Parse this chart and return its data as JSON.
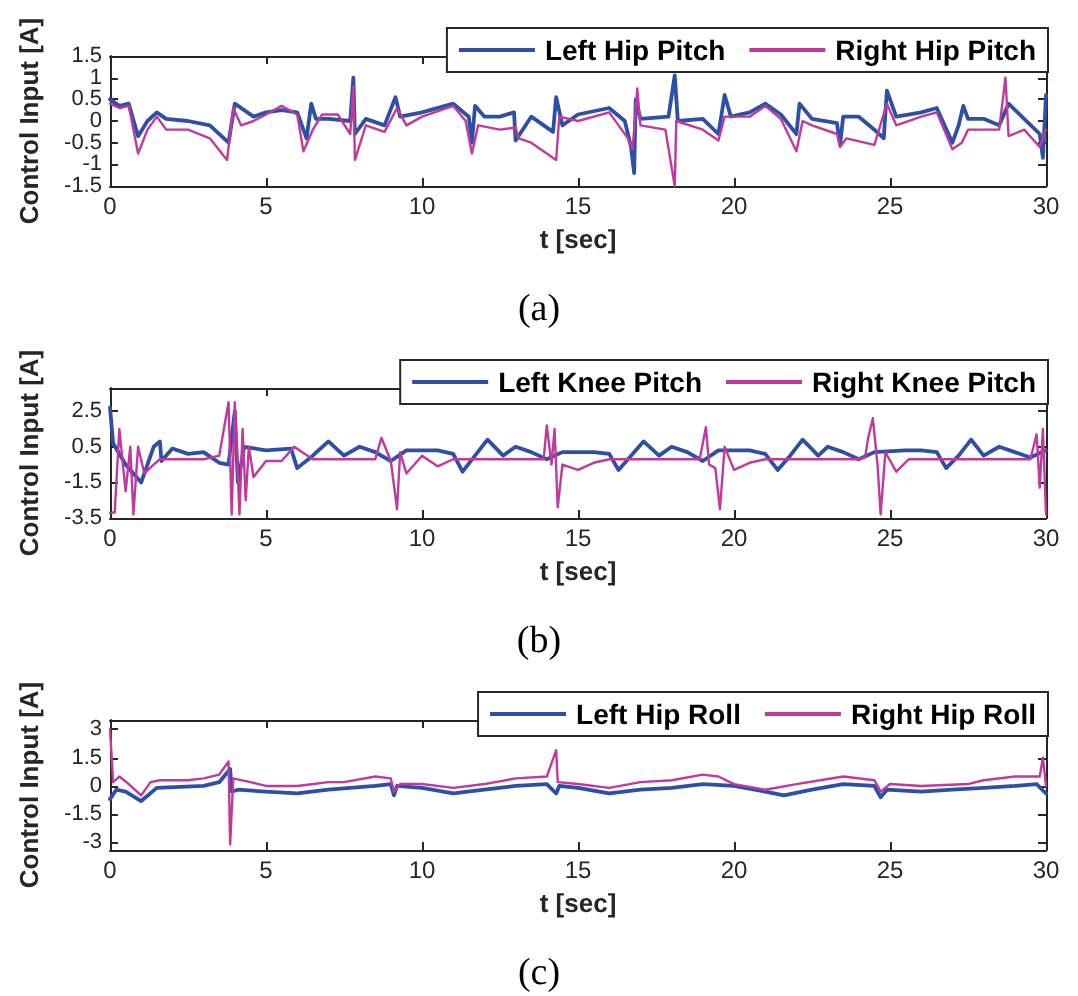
{
  "chart_data": [
    {
      "type": "line",
      "xlabel": "t [sec]",
      "ylabel": "Control Input [A]",
      "annotations": [
        "(a)"
      ],
      "xlim": [
        0,
        30
      ],
      "xticks": [
        0,
        5,
        10,
        15,
        20,
        25,
        30
      ],
      "ylim": [
        -1.5,
        1.5
      ],
      "yticks": [
        -1.5,
        -1,
        -0.5,
        0,
        0.5,
        1,
        1.5
      ],
      "legend": "top right",
      "grid": false,
      "series": [
        {
          "name": "Left Hip Pitch",
          "color": "#2e4fa8",
          "x": [
            0,
            0.3,
            0.6,
            0.9,
            1.2,
            1.5,
            1.8,
            2.5,
            3.2,
            3.8,
            4.0,
            4.3,
            4.6,
            5.0,
            5.5,
            6.0,
            6.3,
            6.45,
            6.6,
            7.0,
            7.7,
            7.8,
            7.85,
            8.2,
            8.8,
            9.15,
            9.3,
            10,
            11,
            11.5,
            11.6,
            11.7,
            12,
            12.5,
            12.95,
            13.0,
            13.5,
            14.2,
            14.3,
            14.5,
            15,
            16,
            16.5,
            16.7,
            16.8,
            16.85,
            17,
            17.9,
            18.1,
            18.2,
            19,
            19.5,
            19.7,
            19.9,
            20.5,
            21,
            21.5,
            22,
            22.1,
            22.5,
            23.3,
            23.4,
            23.5,
            24,
            24.5,
            24.8,
            24.9,
            25.2,
            26,
            26.5,
            27,
            27.2,
            27.35,
            27.5,
            28,
            28.5,
            28.8,
            29.3,
            29.8,
            29.9,
            30
          ],
          "values": [
            0.5,
            0.35,
            0.4,
            -0.35,
            0,
            0.2,
            0.05,
            0,
            -0.1,
            -0.5,
            0.4,
            0.25,
            0.1,
            0.2,
            0.25,
            0.2,
            -0.4,
            0.4,
            0.05,
            0.05,
            0,
            1.0,
            -0.3,
            0.05,
            -0.1,
            0.55,
            0.1,
            0.2,
            0.4,
            0.1,
            -0.5,
            0.35,
            0.1,
            0.1,
            0.2,
            -0.45,
            0.1,
            -0.25,
            0.55,
            -0.1,
            0.15,
            0.3,
            0,
            -0.6,
            -1.2,
            0.5,
            0.05,
            0.1,
            1.05,
            0,
            0.05,
            -0.3,
            0.6,
            0.1,
            0.2,
            0.4,
            0.15,
            -0.3,
            0.4,
            0.05,
            -0.05,
            -0.55,
            0.1,
            0.1,
            -0.2,
            -0.4,
            0.7,
            0.1,
            0.2,
            0.3,
            -0.5,
            -0.1,
            0.35,
            0.05,
            0.05,
            -0.1,
            0.4,
            0.05,
            -0.3,
            -0.85,
            0.6
          ]
        },
        {
          "name": "Right Hip Pitch",
          "color": "#c0399e",
          "x": [
            0,
            0.3,
            0.6,
            0.9,
            1.2,
            1.5,
            1.8,
            2.5,
            3.2,
            3.75,
            3.95,
            4.2,
            4.6,
            5.0,
            5.5,
            6.0,
            6.2,
            6.5,
            6.8,
            7.3,
            7.7,
            7.8,
            7.85,
            8.2,
            8.8,
            9.2,
            9.5,
            10,
            11,
            11.4,
            11.6,
            11.8,
            12.5,
            13.0,
            13.1,
            13.5,
            14.3,
            14.4,
            15,
            16,
            16.6,
            16.75,
            16.9,
            17,
            17.8,
            18.1,
            18.15,
            19,
            19.5,
            19.7,
            20.5,
            21,
            21.5,
            22,
            22.2,
            22.5,
            23.3,
            23.4,
            23.6,
            24.5,
            24.9,
            25.2,
            26,
            26.5,
            27,
            27.3,
            27.5,
            28.5,
            28.7,
            28.8,
            29.3,
            29.8,
            30
          ],
          "values": [
            0.4,
            0.3,
            0.35,
            -0.75,
            -0.2,
            0.1,
            -0.2,
            -0.2,
            -0.4,
            -0.9,
            0.3,
            -0.1,
            0,
            0.15,
            0.35,
            0.15,
            -0.7,
            -0.2,
            0.15,
            0.15,
            -0.3,
            0.8,
            -0.9,
            -0.1,
            -0.25,
            0.3,
            -0.1,
            0.1,
            0.35,
            0,
            -0.75,
            -0.1,
            -0.2,
            -0.15,
            -0.4,
            -0.5,
            -0.9,
            0.1,
            0,
            0.2,
            -0.4,
            -0.65,
            0.75,
            -0.1,
            -0.2,
            -1.5,
            0,
            -0.2,
            -0.45,
            0.1,
            0.1,
            0.35,
            0.05,
            -0.7,
            0,
            -0.1,
            -0.3,
            -0.6,
            -0.4,
            -0.55,
            0.4,
            -0.1,
            0.1,
            0.2,
            -0.65,
            -0.5,
            -0.2,
            -0.2,
            1.0,
            -0.35,
            -0.2,
            -0.6,
            -0.2
          ]
        }
      ]
    },
    {
      "type": "line",
      "xlabel": "t [sec]",
      "ylabel": "Control Input [A]",
      "annotations": [
        "(b)"
      ],
      "xlim": [
        0,
        30
      ],
      "xticks": [
        0,
        5,
        10,
        15,
        20,
        25,
        30
      ],
      "ylim": [
        -3.5,
        3.8
      ],
      "yticks": [
        -3.5,
        -1.5,
        0.5,
        2.5
      ],
      "legend": "top right",
      "grid": false,
      "series": [
        {
          "name": "Left Knee Pitch",
          "color": "#2e4fa8",
          "x": [
            0,
            0.1,
            0.5,
            1.0,
            1.4,
            1.6,
            1.65,
            2,
            2.5,
            3,
            3.5,
            3.8,
            4.0,
            4.1,
            4.3,
            5,
            5.8,
            6.0,
            6.5,
            7,
            7.5,
            8,
            8.5,
            9,
            9.5,
            10.5,
            11,
            11.3,
            11.7,
            12.1,
            12.6,
            13,
            13.5,
            14,
            14.5,
            15.5,
            16,
            16.3,
            16.7,
            17.1,
            17.6,
            18,
            18.5,
            19,
            19.5,
            20.5,
            21,
            21.4,
            21.8,
            22.2,
            22.7,
            23,
            23.5,
            24,
            24.5,
            25.5,
            26,
            26.5,
            26.8,
            27.2,
            27.6,
            28,
            28.5,
            29,
            29.5,
            30
          ],
          "values": [
            2.7,
            0.7,
            -0.5,
            -1.5,
            0.5,
            0.8,
            -0.3,
            0.4,
            0.1,
            0.2,
            -0.4,
            -0.5,
            2.5,
            -1.5,
            0.5,
            0.3,
            0.4,
            -0.7,
            0,
            0.8,
            0,
            0.5,
            0.2,
            -0.3,
            0.3,
            0.3,
            0.1,
            -0.9,
            0,
            0.9,
            0,
            0.5,
            0.2,
            -0.2,
            0.2,
            0.2,
            0.1,
            -0.8,
            0,
            0.8,
            0,
            0.5,
            0.2,
            -0.3,
            0.3,
            0.3,
            0.1,
            -0.8,
            0,
            0.9,
            0,
            0.5,
            0.2,
            -0.2,
            0.2,
            0.3,
            0.3,
            0.2,
            -0.7,
            0,
            0.9,
            0,
            0.5,
            0.2,
            -0.1,
            0.3
          ]
        },
        {
          "name": "Right Knee Pitch",
          "color": "#c0399e",
          "x": [
            0,
            0.15,
            0.3,
            0.5,
            0.65,
            0.75,
            0.9,
            1.1,
            1.4,
            1.6,
            2,
            3,
            3.5,
            3.7,
            3.8,
            3.9,
            4.0,
            4.15,
            4.25,
            4.35,
            4.45,
            4.6,
            5,
            5.5,
            5.9,
            6.5,
            7,
            8.5,
            8.7,
            9.0,
            9.2,
            9.3,
            9.5,
            10,
            10.5,
            11,
            13.5,
            13.9,
            14.0,
            14.15,
            14.25,
            14.35,
            14.5,
            15,
            15.5,
            16,
            18.5,
            18.9,
            19.1,
            19.2,
            19.4,
            19.55,
            19.7,
            20,
            20.5,
            21,
            24,
            24.2,
            24.3,
            24.45,
            24.6,
            24.7,
            24.85,
            25.2,
            25.6,
            26.5,
            29.5,
            29.7,
            29.8,
            29.9,
            30
          ],
          "values": [
            -3.2,
            -3.2,
            1.5,
            -2.0,
            0.5,
            -3.3,
            0.5,
            -1.0,
            -0.5,
            -0.2,
            -0.2,
            -0.2,
            0,
            2,
            3.0,
            -3.3,
            3.0,
            -3.3,
            1.5,
            -2.5,
            0.5,
            -1.2,
            -0.3,
            -0.3,
            0.5,
            -0.2,
            -0.2,
            -0.2,
            1.0,
            -0.3,
            -3.0,
            0.2,
            -1.0,
            0,
            -0.6,
            -0.2,
            -0.2,
            -0.2,
            1.7,
            -0.5,
            1.5,
            -2.9,
            -0.5,
            -0.8,
            -0.4,
            -0.2,
            -0.2,
            -0.2,
            1.6,
            -0.5,
            -0.7,
            -3.0,
            0.5,
            -0.8,
            -0.4,
            -0.2,
            -0.2,
            -0.1,
            1.0,
            2.1,
            -0.5,
            -3.3,
            0.2,
            -0.9,
            -0.2,
            -0.2,
            -0.2,
            1.2,
            -1.8,
            1.5,
            -3.3
          ]
        }
      ]
    },
    {
      "type": "line",
      "xlabel": "t [sec]",
      "ylabel": "Control Input [A]",
      "annotations": [
        "(c)"
      ],
      "xlim": [
        0,
        30
      ],
      "xticks": [
        0,
        5,
        10,
        15,
        20,
        25,
        30
      ],
      "ylim": [
        -3.4,
        3.5
      ],
      "yticks": [
        -3,
        -1.5,
        0,
        1.5,
        3
      ],
      "legend": "top right",
      "grid": false,
      "series": [
        {
          "name": "Left Hip Roll",
          "color": "#2e4fa8",
          "x": [
            0,
            0.2,
            0.5,
            1.0,
            1.5,
            3.0,
            3.5,
            3.85,
            3.9,
            4.1,
            5,
            6,
            7,
            8.5,
            9,
            9.1,
            9.2,
            10,
            11,
            12,
            13,
            14,
            14.3,
            14.4,
            15,
            16,
            17,
            18,
            19,
            20,
            21,
            21.6,
            22.5,
            23.5,
            24.5,
            24.7,
            24.9,
            26,
            27,
            28,
            29,
            29.7,
            30
          ],
          "values": [
            -0.7,
            -0.2,
            -0.3,
            -0.8,
            -0.1,
            0,
            0.2,
            0.9,
            -0.3,
            -0.2,
            -0.3,
            -0.4,
            -0.2,
            0,
            0.1,
            -0.5,
            0,
            -0.1,
            -0.4,
            -0.2,
            0,
            0.1,
            -0.4,
            0,
            -0.1,
            -0.4,
            -0.2,
            -0.1,
            0.1,
            0,
            -0.3,
            -0.5,
            -0.2,
            0.1,
            0,
            -0.6,
            -0.2,
            -0.3,
            -0.2,
            -0.1,
            0,
            0.1,
            -0.4
          ]
        },
        {
          "name": "Right Hip Roll",
          "color": "#c0399e",
          "x": [
            0,
            0.1,
            0.3,
            0.6,
            1.0,
            1.3,
            1.6,
            2.5,
            3,
            3.5,
            3.8,
            3.85,
            3.95,
            4.5,
            5,
            6,
            7,
            7.5,
            8.5,
            9,
            9.1,
            9.3,
            10,
            11,
            12,
            13,
            14,
            14.3,
            14.35,
            15,
            16,
            17,
            18,
            19,
            19.5,
            20,
            21,
            22,
            23.5,
            24.5,
            24.7,
            25,
            26,
            27.5,
            28,
            29,
            29.8,
            29.9,
            30
          ],
          "values": [
            3.0,
            0.2,
            0.5,
            0.1,
            -0.5,
            0.2,
            0.3,
            0.3,
            0.4,
            0.6,
            1.3,
            -3.1,
            0.4,
            0.2,
            0,
            0,
            0.2,
            0.2,
            0.5,
            0.4,
            -0.3,
            0.1,
            0.1,
            -0.1,
            0.1,
            0.4,
            0.5,
            1.9,
            0.2,
            0.1,
            -0.1,
            0.2,
            0.3,
            0.6,
            0.5,
            0.1,
            -0.2,
            0.1,
            0.5,
            0.3,
            -0.3,
            0.1,
            0,
            0.1,
            0.3,
            0.5,
            0.5,
            1.5,
            0
          ]
        }
      ]
    }
  ]
}
